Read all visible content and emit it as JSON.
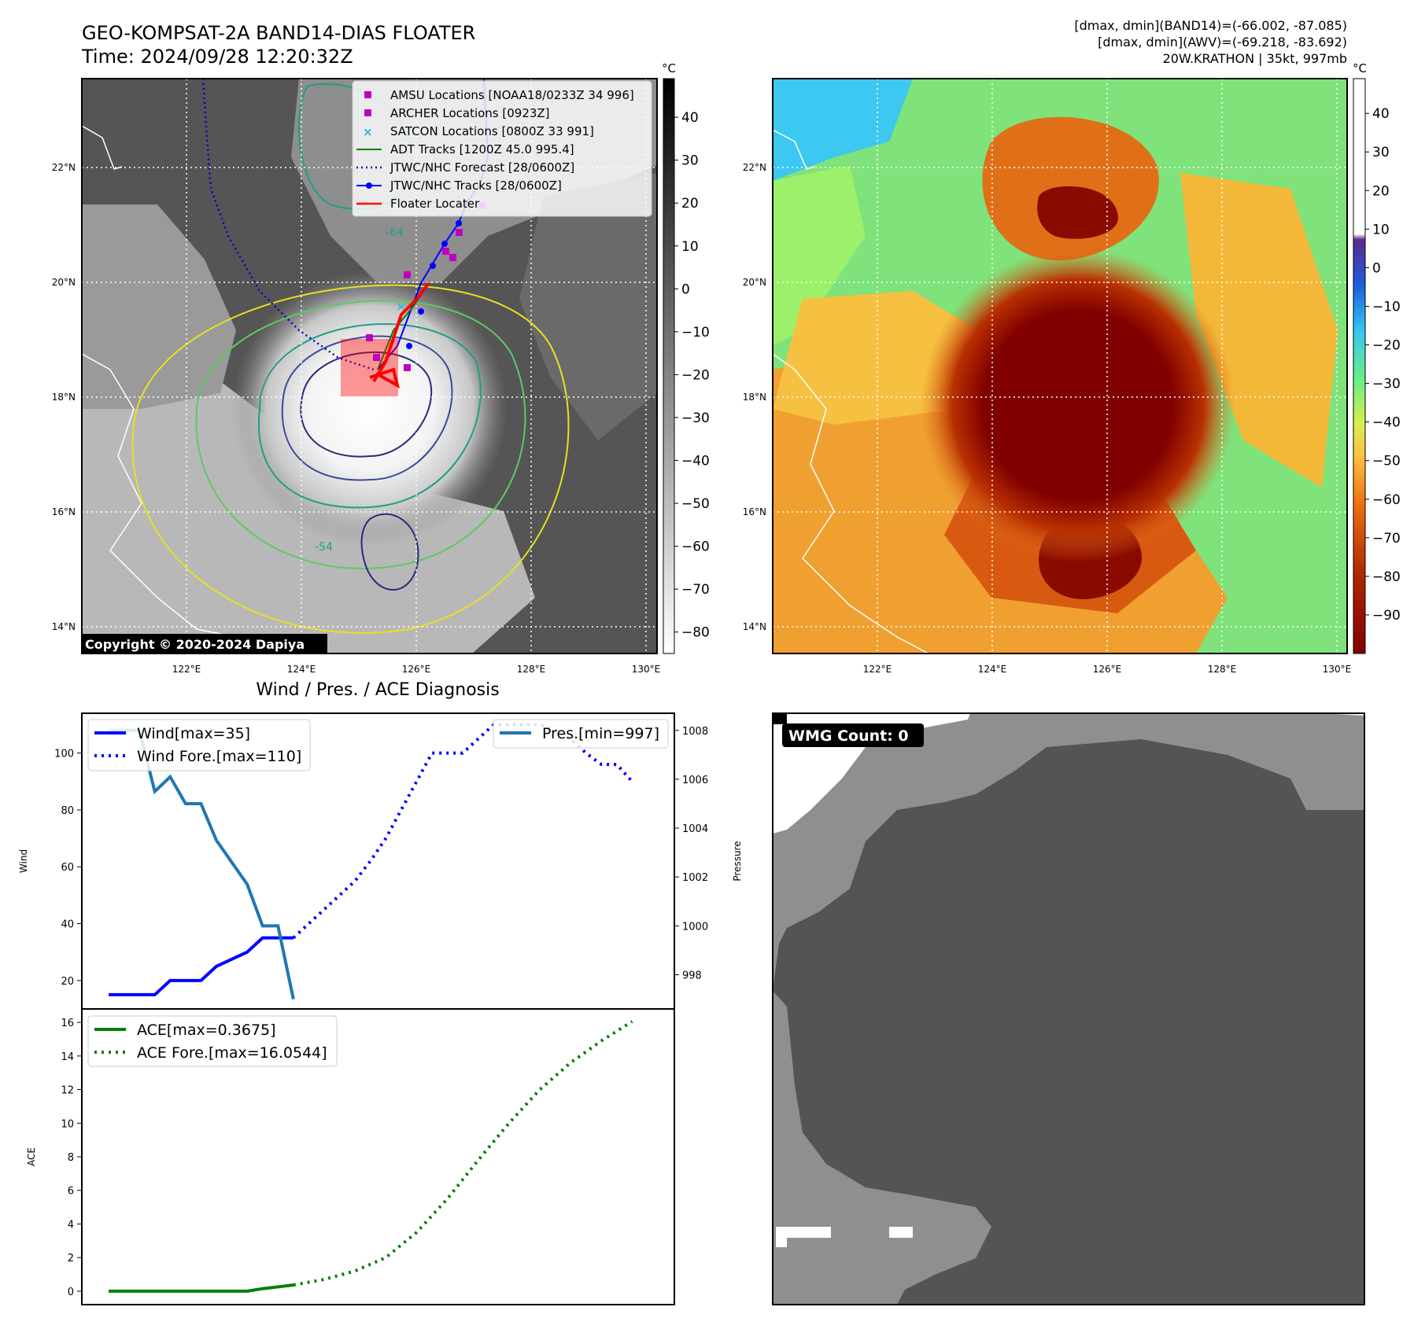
{
  "header": {
    "title_line1": "GEO-KOMPSAT-2A BAND14-DIAS FLOATER",
    "title_line2": "Time: 2024/09/28 12:20:32Z",
    "stats_line1": "[dmax, dmin](BAND14)=(-66.002, -87.085)",
    "stats_line2": "[dmax, dmin](AWV)=(-69.218, -83.692)",
    "stats_line3": "20W.KRATHON | 35kt, 997mb"
  },
  "copyright": "Copyright © 2020-2024 Dapiya",
  "colors": {
    "wind": "#0000ff",
    "pressure": "#1f77b4",
    "ace": "#008000",
    "floater": "#ff0000",
    "amsu": "#bf00bf",
    "satcon": "#17becf",
    "adt": "#008000"
  },
  "map_ticks": {
    "lat_labels": [
      "22°N",
      "20°N",
      "18°N",
      "16°N",
      "14°N"
    ],
    "lon_labels": [
      "122°E",
      "124°E",
      "126°E",
      "128°E",
      "130°E"
    ]
  },
  "ir_map": {
    "legend": [
      "AMSU Locations [NOAA18/0233Z 34 996]",
      "ARCHER Locations [0923Z]",
      "SATCON Locations [0800Z 33 991]",
      "ADT Tracks [1200Z 45.0 995.4]",
      "JTWC/NHC Forecast [28/0600Z]",
      "JTWC/NHC Tracks [28/0600Z]",
      "Floater Locater"
    ],
    "colorbar_unit": "°C",
    "colorbar_ticks": [
      "40",
      "30",
      "20",
      "10",
      "0",
      "−10",
      "−20",
      "−30",
      "−40",
      "−50",
      "−60",
      "−70",
      "−80"
    ],
    "contour_labels": [
      "-64",
      "-54"
    ]
  },
  "color_map": {
    "colorbar_unit": "°C",
    "colorbar_ticks": [
      "40",
      "30",
      "20",
      "10",
      "0",
      "−10",
      "−20",
      "−30",
      "−40",
      "−50",
      "−60",
      "−70",
      "−80",
      "−90"
    ]
  },
  "wmg_label": "WMG Count: 0",
  "chart_data": [
    {
      "type": "line",
      "title": "Wind / Pres. / ACE Diagnosis",
      "xlim": [
        0,
        35
      ],
      "ylabel": "Wind",
      "ylabel_right": "Pressure",
      "ylim": [
        10,
        114
      ],
      "ylim_right": [
        996.6,
        1008.7
      ],
      "y_ticks": [
        "20",
        "40",
        "60",
        "80",
        "100"
      ],
      "y_ticks_right": [
        "998",
        "1000",
        "1002",
        "1004",
        "1006",
        "1008"
      ],
      "legend_left": [
        "Wind[max=35]",
        "Wind Fore.[max=110]"
      ],
      "legend_right": [
        "Pres.[min=997]"
      ],
      "series": [
        {
          "name": "Wind[max=35]",
          "style": "solid",
          "axis": "left",
          "x": [
            0,
            3,
            4,
            6,
            7,
            9,
            10,
            11,
            12
          ],
          "values": [
            15,
            15,
            20,
            20,
            25,
            30,
            35,
            35,
            35
          ]
        },
        {
          "name": "Wind Fore.[max=110]",
          "style": "dotted",
          "axis": "left",
          "x": [
            12,
            13,
            14,
            15,
            16,
            17,
            18,
            19,
            20,
            21,
            22,
            23,
            24,
            25,
            26,
            27,
            28,
            29,
            30,
            31,
            32,
            33,
            34
          ],
          "values": [
            35,
            40,
            45,
            50,
            55,
            62,
            70,
            80,
            90,
            100,
            100,
            100,
            105,
            110,
            110,
            110,
            110,
            108,
            105,
            100,
            96,
            96,
            90
          ]
        },
        {
          "name": "Pres.[min=997]",
          "style": "solid",
          "axis": "right",
          "x": [
            0,
            1,
            2,
            3,
            4,
            5,
            6,
            7,
            8,
            9,
            10,
            11,
            12
          ],
          "values": [
            1008,
            1008,
            1008,
            1005.5,
            1006.1,
            1005,
            1005,
            1003.5,
            1002.6,
            1001.7,
            1000,
            1000,
            997
          ]
        }
      ]
    },
    {
      "type": "line",
      "xlim": [
        0,
        35
      ],
      "ylabel": "ACE",
      "ylim": [
        -0.8,
        16.8
      ],
      "y_ticks": [
        "0",
        "2",
        "4",
        "6",
        "8",
        "10",
        "12",
        "14",
        "16"
      ],
      "legend": [
        "ACE[max=0.3675]",
        "ACE Fore.[max=16.0544]"
      ],
      "series": [
        {
          "name": "ACE[max=0.3675]",
          "style": "solid",
          "x": [
            0,
            3,
            6,
            9,
            10,
            12
          ],
          "values": [
            0,
            0,
            0,
            0,
            0.15,
            0.3675
          ]
        },
        {
          "name": "ACE Fore.[max=16.0544]",
          "style": "dotted",
          "x": [
            12,
            14,
            16,
            18,
            20,
            22,
            24,
            26,
            28,
            30,
            32,
            34
          ],
          "values": [
            0.3675,
            0.7,
            1.2,
            2.0,
            3.5,
            5.5,
            7.8,
            10.0,
            12.0,
            13.6,
            14.9,
            16.0544
          ]
        }
      ]
    }
  ]
}
